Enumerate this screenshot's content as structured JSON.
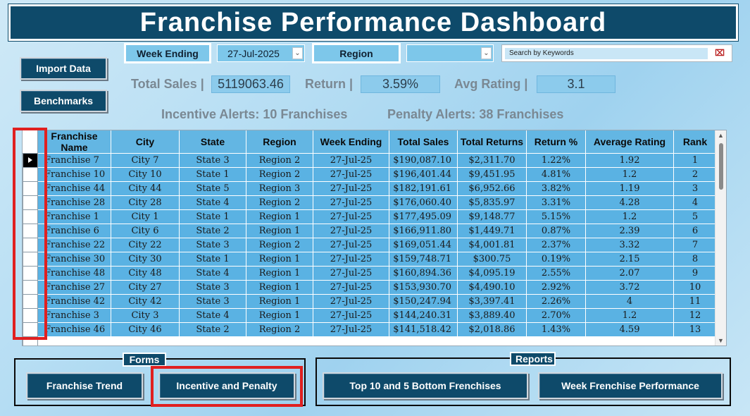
{
  "title": "Franchise Performance Dashboard",
  "buttons": {
    "import_data": "Import Data",
    "benchmarks": "Benchmarks"
  },
  "filters": {
    "week_ending_label": "Week Ending",
    "week_ending_value": "27-Jul-2025",
    "region_label": "Region",
    "region_value": ""
  },
  "search": {
    "placeholder": "Search by Keywords",
    "icon": "clear-filter-icon"
  },
  "stats": {
    "total_sales_label": "Total Sales |",
    "total_sales_value": "5119063.46",
    "return_label": "Return |",
    "return_value": "3.59%",
    "avg_rating_label": "Avg Rating |",
    "avg_rating_value": "3.1"
  },
  "alerts": {
    "incentive": "Incentive Alerts: 10 Franchises",
    "penalty": "Penalty Alerts: 38 Franchises"
  },
  "table": {
    "columns": [
      "Franchise Name",
      "City",
      "State",
      "Region",
      "Week Ending",
      "Total Sales",
      "Total Returns",
      "Return %",
      "Average Rating",
      "Rank"
    ],
    "rows": [
      [
        "Franchise  7",
        "City  7",
        "State  3",
        "Region  2",
        "27-Jul-25",
        "$190,087.10",
        "$2,311.70",
        "1.22%",
        "1.92",
        "1"
      ],
      [
        "Franchise  10",
        "City  10",
        "State  1",
        "Region  2",
        "27-Jul-25",
        "$196,401.44",
        "$9,451.95",
        "4.81%",
        "1.2",
        "2"
      ],
      [
        "Franchise  44",
        "City  44",
        "State  5",
        "Region  3",
        "27-Jul-25",
        "$182,191.61",
        "$6,952.66",
        "3.82%",
        "1.19",
        "3"
      ],
      [
        "Franchise  28",
        "City  28",
        "State  4",
        "Region  2",
        "27-Jul-25",
        "$176,060.40",
        "$5,835.97",
        "3.31%",
        "4.28",
        "4"
      ],
      [
        "Franchise  1",
        "City  1",
        "State  1",
        "Region  1",
        "27-Jul-25",
        "$177,495.09",
        "$9,148.77",
        "5.15%",
        "1.2",
        "5"
      ],
      [
        "Franchise  6",
        "City  6",
        "State  2",
        "Region  1",
        "27-Jul-25",
        "$166,911.80",
        "$1,449.71",
        "0.87%",
        "2.39",
        "6"
      ],
      [
        "Franchise  22",
        "City  22",
        "State  3",
        "Region  2",
        "27-Jul-25",
        "$169,051.44",
        "$4,001.81",
        "2.37%",
        "3.32",
        "7"
      ],
      [
        "Franchise  30",
        "City  30",
        "State  1",
        "Region  1",
        "27-Jul-25",
        "$159,748.71",
        "$300.75",
        "0.19%",
        "2.15",
        "8"
      ],
      [
        "Franchise  48",
        "City  48",
        "State  4",
        "Region  1",
        "27-Jul-25",
        "$160,894.36",
        "$4,095.19",
        "2.55%",
        "2.07",
        "9"
      ],
      [
        "Franchise  27",
        "City  27",
        "State  3",
        "Region  1",
        "27-Jul-25",
        "$153,930.70",
        "$4,490.10",
        "2.92%",
        "3.72",
        "10"
      ],
      [
        "Franchise  42",
        "City  42",
        "State  3",
        "Region  1",
        "27-Jul-25",
        "$150,247.94",
        "$3,397.41",
        "2.26%",
        "4",
        "11"
      ],
      [
        "Franchise  3",
        "City  3",
        "State  4",
        "Region  1",
        "27-Jul-25",
        "$144,240.31",
        "$3,889.40",
        "2.70%",
        "1.2",
        "12"
      ],
      [
        "Franchise  46",
        "City  46",
        "State  2",
        "Region  2",
        "27-Jul-25",
        "$141,518.42",
        "$2,018.86",
        "1.43%",
        "4.59",
        "13"
      ]
    ]
  },
  "forms": {
    "title": "Forms",
    "franchise_trend": "Franchise Trend",
    "incentive_penalty": "Incentive and Penalty"
  },
  "reports": {
    "title": "Reports",
    "top_bottom": "Top 10 and 5 Bottom Frenchises",
    "week_performance": "Week Frenchise Performance"
  },
  "colors": {
    "accent": "#0e4a6a",
    "cell": "#5ab2e3",
    "highlight": "#e02020"
  }
}
